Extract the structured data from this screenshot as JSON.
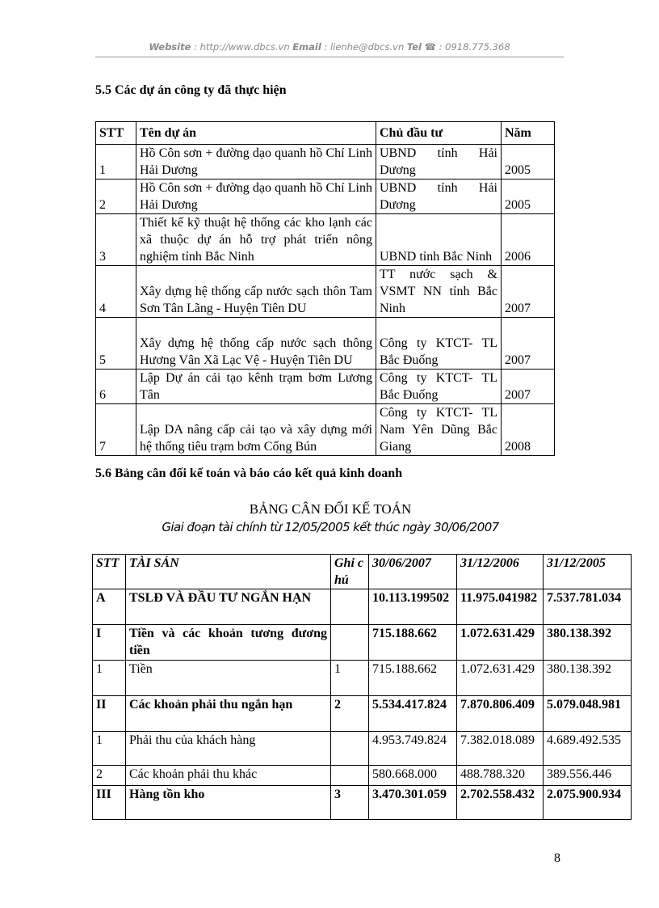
{
  "header": {
    "website_label": "Website",
    "website": ": http://www.dbcs.vn",
    "email_label": "Email",
    "email": ": lienhe@dbcs.vn",
    "tel_label": "Tel",
    "tel": ": 0918.775.368"
  },
  "section1": {
    "heading": "5.5 Các dự án công ty đã thực hiện",
    "columns": [
      "STT",
      "Tên dự án",
      "Chủ đầu tư",
      "Năm"
    ],
    "rows": [
      [
        "1",
        "Hồ Côn sơn + đường dạo quanh hồ Chí Linh Hải Dương",
        "UBND tỉnh Hải Dương",
        "2005"
      ],
      [
        "2",
        "Hồ Côn sơn + đường dạo quanh hồ Chí Linh Hải Dương",
        "UBND tỉnh Hải Dương",
        "2005"
      ],
      [
        "3",
        "Thiết kế kỹ thuật hệ thống các kho lạnh các xã thuộc dự án hỗ trợ phát triển nông nghiệm tỉnh Bắc Ninh",
        "UBND tỉnh Bắc Ninh",
        "2006"
      ],
      [
        "4",
        "Xây dựng hệ thống cấp nước sạch thôn Tam Sơn Tân Lãng - Huyện Tiên DU",
        "TT nước sạch & VSMT NN tỉnh Bắc Ninh",
        "2007"
      ],
      [
        "5",
        "Xây dựng hệ thống cấp nước sạch thông Hương Vân Xã Lạc Vệ - Huyện Tiên DU",
        "Công ty KTCT- TL Bắc Đuống",
        "2007"
      ],
      [
        "6",
        "Lập Dự án cải tạo kênh trạm bơm Lương Tân",
        "Công ty KTCT- TL Bắc Đuống",
        "2007"
      ],
      [
        "7",
        "Lập DA nâng cấp cải tạo và xây dựng mới hệ thống tiêu trạm bơm Cống Bún",
        "Công ty KTCT- TL Nam Yên Dũng Bắc Giang",
        "2008"
      ]
    ]
  },
  "section2": {
    "heading": "5.6 Bảng cân đối kế toán và báo cáo kết quả kinh doanh",
    "title": "BẢNG CÂN ĐỐI KẾ TOÁN",
    "subtitle": "Giai đoạn tài chính từ 12/05/2005 kết thúc ngày 30/06/2007",
    "columns": [
      "STT",
      "TÀI SẢN",
      "Ghi chú",
      "30/06/2007",
      "31/12/2006",
      "31/12/2005"
    ],
    "rows": [
      [
        "A",
        "TSLĐ VÀ ĐẦU TƯ NGẮN HẠN",
        "",
        "10.113.199502",
        "11.975.041982",
        "7.537.781.034"
      ],
      [
        "I",
        "Tiền và các khoản tương đương tiền",
        "",
        "715.188.662",
        "1.072.631.429",
        "380.138.392"
      ],
      [
        "1",
        "Tiền",
        "1",
        "715.188.662",
        "1.072.631.429",
        "380.138.392"
      ],
      [
        "II",
        "Các khoản phải thu ngắn hạn",
        "2",
        "5.534.417.824",
        "7.870.806.409",
        "5.079.048.981"
      ],
      [
        "1",
        "Phải thu của khách hàng",
        "",
        "4.953.749.824",
        "7.382.018.089",
        "4.689.492.535"
      ],
      [
        "2",
        "Các khoản phải thu khác",
        "",
        "580.668.000",
        "488.788.320",
        "389.556.446"
      ],
      [
        "III",
        "Hàng tồn kho",
        "3",
        "3.470.301.059",
        "2.702.558.432",
        "2.075.900.934"
      ]
    ]
  },
  "page_number": "8"
}
